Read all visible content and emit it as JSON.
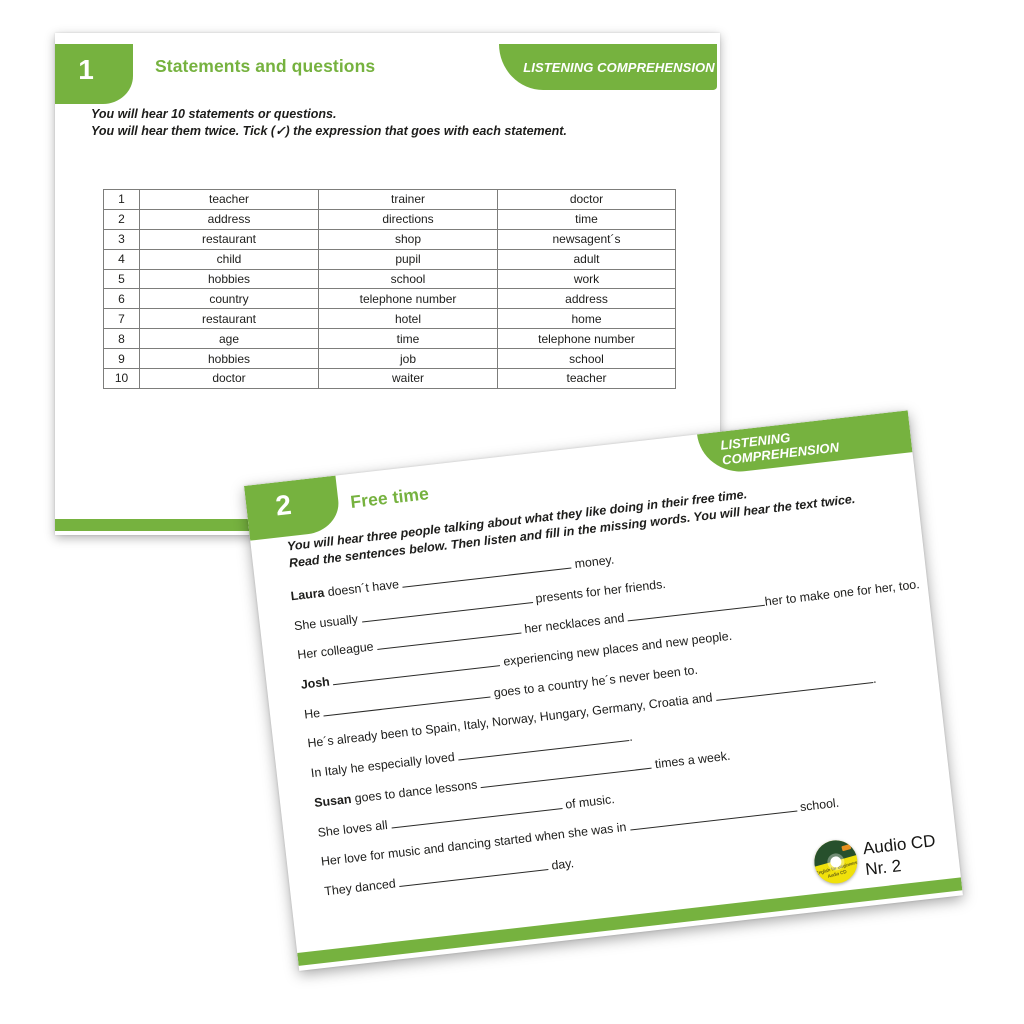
{
  "colors": {
    "green": "#76b23f",
    "text": "#1d1d1b",
    "table_border": "#7d7d7b",
    "cd_green": "#27502c",
    "cd_yellow": "#f0e10b",
    "cd_orange": "#e8901e"
  },
  "page1": {
    "tab_number": "1",
    "title": "Statements and questions",
    "badge": "LISTENING COMPREHENSION",
    "instructions": [
      "You will hear 10 statements or questions.",
      "You will hear them twice. Tick (✓) the expression that goes with each statement."
    ],
    "table": {
      "rows": [
        {
          "num": "1",
          "options": [
            "teacher",
            "trainer",
            "doctor"
          ]
        },
        {
          "num": "2",
          "options": [
            "address",
            "directions",
            "time"
          ]
        },
        {
          "num": "3",
          "options": [
            "restaurant",
            "shop",
            "newsagent´s"
          ]
        },
        {
          "num": "4",
          "options": [
            "child",
            "pupil",
            "adult"
          ]
        },
        {
          "num": "5",
          "options": [
            "hobbies",
            "school",
            "work"
          ]
        },
        {
          "num": "6",
          "options": [
            "country",
            "telephone number",
            "address"
          ]
        },
        {
          "num": "7",
          "options": [
            "restaurant",
            "hotel",
            "home"
          ]
        },
        {
          "num": "8",
          "options": [
            "age",
            "time",
            "telephone number"
          ]
        },
        {
          "num": "9",
          "options": [
            "hobbies",
            "job",
            "school"
          ]
        },
        {
          "num": "10",
          "options": [
            "doctor",
            "waiter",
            "teacher"
          ]
        }
      ]
    }
  },
  "page2": {
    "tab_number": "2",
    "title": "Free time",
    "badge": "LISTENING COMPREHENSION",
    "instructions": [
      "You will hear three people talking about what they like doing in their free time.",
      "Read the sentences below. Then listen and fill in the missing words. You will hear the text twice."
    ],
    "lines": [
      [
        {
          "b": "Laura"
        },
        {
          "t": " doesn´t have "
        },
        {
          "u": 170
        },
        {
          "t": " money."
        }
      ],
      [
        {
          "t": "She usually "
        },
        {
          "u": 172
        },
        {
          "t": " presents for her friends."
        }
      ],
      [
        {
          "t": "Her colleague "
        },
        {
          "u": 145
        },
        {
          "t": " her necklaces and "
        },
        {
          "u": 138
        },
        {
          "t": "her to make one for her, too."
        }
      ],
      [
        {
          "b": "Josh"
        },
        {
          "t": " "
        },
        {
          "u": 168
        },
        {
          "t": " experiencing new places and new people."
        }
      ],
      [
        {
          "t": "He "
        },
        {
          "u": 168
        },
        {
          "t": " goes to a country he´s never been to."
        }
      ],
      [
        {
          "t": "He´s already been to Spain, Italy, Norway, Hungary, Germany, Croatia and "
        },
        {
          "u": 158
        },
        {
          "t": "."
        }
      ],
      [
        {
          "t": "In Italy he especially loved "
        },
        {
          "u": 172
        },
        {
          "t": "."
        }
      ],
      [
        {
          "b": "Susan"
        },
        {
          "t": " goes to dance lessons "
        },
        {
          "u": 172
        },
        {
          "t": " times a week."
        }
      ],
      [
        {
          "t": "She loves all "
        },
        {
          "u": 172
        },
        {
          "t": " of music."
        }
      ],
      [
        {
          "t": "Her love for music and dancing started when she was in "
        },
        {
          "u": 168
        },
        {
          "t": " school."
        }
      ],
      [
        {
          "t": "They danced "
        },
        {
          "u": 150
        },
        {
          "t": " day."
        }
      ]
    ],
    "audio_cd": {
      "line1": "Audio CD",
      "line2": "Nr. 2",
      "disc_text": [
        "English for Beginners",
        "Audio CD"
      ]
    }
  }
}
